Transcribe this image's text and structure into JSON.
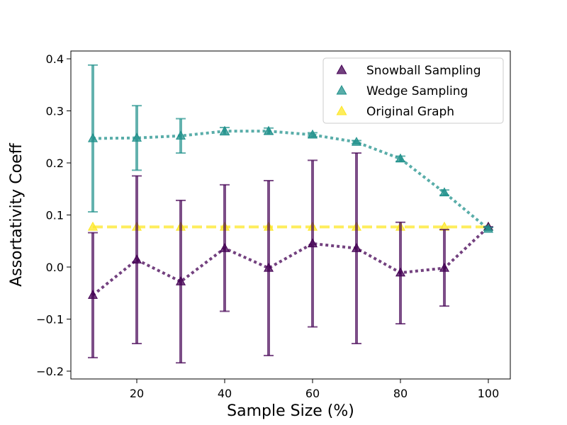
{
  "chart_data": {
    "type": "scatter",
    "xlabel": "Sample Size (%)",
    "ylabel": "Assortativity Coeff",
    "xlim": [
      5,
      105
    ],
    "ylim": [
      -0.215,
      0.415
    ],
    "xticks": [
      20,
      40,
      60,
      80,
      100
    ],
    "xtick_labels": [
      "20",
      "40",
      "60",
      "80",
      "100"
    ],
    "yticks": [
      -0.2,
      -0.1,
      0.0,
      0.1,
      0.2,
      0.3,
      0.4
    ],
    "ytick_labels": [
      "−0.2",
      "−0.1",
      "0.0",
      "0.1",
      "0.2",
      "0.3",
      "0.4"
    ],
    "grid": false,
    "legend_position": "top-right",
    "series": [
      {
        "name": "Snowball Sampling",
        "color": "#440154",
        "marker": "triangle",
        "line_style": "dotted",
        "x": [
          10,
          20,
          30,
          40,
          50,
          60,
          70,
          80,
          90,
          100
        ],
        "y": [
          -0.054,
          0.014,
          -0.028,
          0.036,
          -0.002,
          0.045,
          0.036,
          -0.011,
          -0.002,
          0.077
        ],
        "err_low": [
          -0.174,
          -0.147,
          -0.184,
          -0.085,
          -0.17,
          -0.115,
          -0.147,
          -0.109,
          -0.075,
          0.077
        ],
        "err_high": [
          0.066,
          0.175,
          0.128,
          0.158,
          0.166,
          0.205,
          0.219,
          0.086,
          0.072,
          0.077
        ]
      },
      {
        "name": "Wedge Sampling",
        "color": "#21918c",
        "marker": "triangle",
        "line_style": "dotted",
        "x": [
          10,
          20,
          30,
          40,
          50,
          60,
          70,
          80,
          90,
          100
        ],
        "y": [
          0.247,
          0.248,
          0.252,
          0.261,
          0.261,
          0.254,
          0.24,
          0.208,
          0.143,
          0.073
        ],
        "err_low": [
          0.106,
          0.186,
          0.219,
          0.254,
          0.255,
          0.25,
          0.237,
          0.203,
          0.138,
          0.071
        ],
        "err_high": [
          0.388,
          0.31,
          0.285,
          0.268,
          0.267,
          0.258,
          0.243,
          0.213,
          0.148,
          0.076
        ]
      },
      {
        "name": "Original Graph",
        "color": "#fde725",
        "marker": "triangle",
        "line_style": "dashed",
        "x": [
          10,
          20,
          30,
          40,
          50,
          60,
          70,
          80,
          90,
          100
        ],
        "y": [
          0.077,
          0.077,
          0.077,
          0.077,
          0.077,
          0.077,
          0.077,
          0.077,
          0.077,
          0.077
        ]
      }
    ]
  }
}
